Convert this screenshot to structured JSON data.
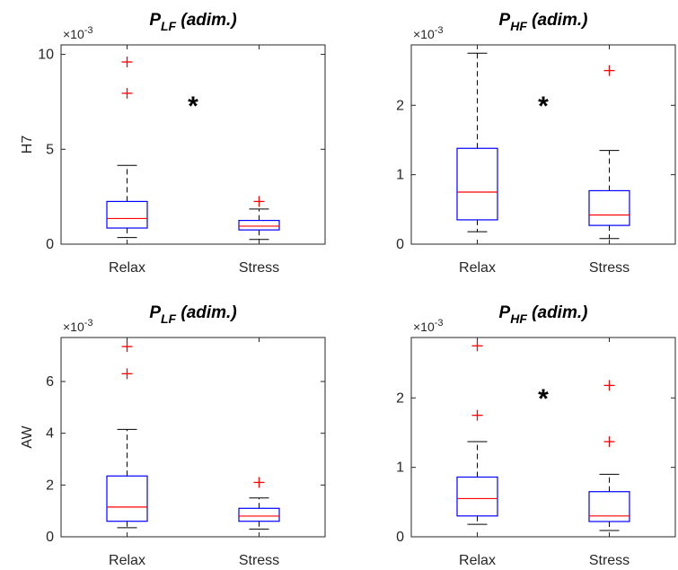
{
  "chart_data": [
    {
      "type": "box",
      "title": {
        "base": "P",
        "sub": "LF",
        "suffix": " (adim.)"
      },
      "ylabel": "H7",
      "multiplier": {
        "base": "×10",
        "exp": "-3"
      },
      "yticks": [
        "0",
        "5",
        "10"
      ],
      "ylim": [
        0,
        10.5
      ],
      "categories": [
        "Relax",
        "Stress"
      ],
      "significance": "*",
      "boxes": [
        {
          "category": "Relax",
          "whisker_low": 0.35,
          "q1": 0.85,
          "median": 1.35,
          "q3": 2.25,
          "whisker_high": 4.15,
          "outliers": [
            9.6,
            7.95
          ]
        },
        {
          "category": "Stress",
          "whisker_low": 0.25,
          "q1": 0.75,
          "median": 0.95,
          "q3": 1.25,
          "whisker_high": 1.85,
          "outliers": [
            2.25
          ]
        }
      ]
    },
    {
      "type": "box",
      "title": {
        "base": "P",
        "sub": "HF",
        "suffix": " (adim.)"
      },
      "ylabel": "",
      "multiplier": {
        "base": "×10",
        "exp": "-3"
      },
      "yticks": [
        "0",
        "1",
        "2"
      ],
      "ylim": [
        0,
        2.87
      ],
      "categories": [
        "Relax",
        "Stress"
      ],
      "significance": "*",
      "boxes": [
        {
          "category": "Relax",
          "whisker_low": 0.18,
          "q1": 0.35,
          "median": 0.75,
          "q3": 1.38,
          "whisker_high": 2.75,
          "outliers": []
        },
        {
          "category": "Stress",
          "whisker_low": 0.08,
          "q1": 0.27,
          "median": 0.42,
          "q3": 0.77,
          "whisker_high": 1.35,
          "outliers": [
            2.5
          ]
        }
      ]
    },
    {
      "type": "box",
      "title": {
        "base": "P",
        "sub": "LF",
        "suffix": " (adim.)"
      },
      "ylabel": "AW",
      "multiplier": {
        "base": "×10",
        "exp": "-3"
      },
      "yticks": [
        "0",
        "2",
        "4",
        "6"
      ],
      "ylim": [
        0,
        7.7
      ],
      "categories": [
        "Relax",
        "Stress"
      ],
      "significance": "",
      "boxes": [
        {
          "category": "Relax",
          "whisker_low": 0.35,
          "q1": 0.6,
          "median": 1.15,
          "q3": 2.35,
          "whisker_high": 4.15,
          "outliers": [
            7.35,
            6.3
          ]
        },
        {
          "category": "Stress",
          "whisker_low": 0.3,
          "q1": 0.6,
          "median": 0.8,
          "q3": 1.1,
          "whisker_high": 1.5,
          "outliers": [
            2.1
          ]
        }
      ]
    },
    {
      "type": "box",
      "title": {
        "base": "P",
        "sub": "HF",
        "suffix": " (adim.)"
      },
      "ylabel": "",
      "multiplier": {
        "base": "×10",
        "exp": "-3"
      },
      "yticks": [
        "0",
        "1",
        "2"
      ],
      "ylim": [
        0,
        2.87
      ],
      "categories": [
        "Relax",
        "Stress"
      ],
      "significance": "*",
      "boxes": [
        {
          "category": "Relax",
          "whisker_low": 0.18,
          "q1": 0.3,
          "median": 0.55,
          "q3": 0.86,
          "whisker_high": 1.37,
          "outliers": [
            2.75,
            1.75
          ]
        },
        {
          "category": "Stress",
          "whisker_low": 0.09,
          "q1": 0.22,
          "median": 0.3,
          "q3": 0.65,
          "whisker_high": 0.9,
          "outliers": [
            2.18,
            1.37
          ]
        }
      ]
    }
  ],
  "colors": {
    "box": "#0000ff",
    "median": "#ff0000",
    "outlier": "#ff0000",
    "whisker": "#000000",
    "axis": "#262626"
  }
}
